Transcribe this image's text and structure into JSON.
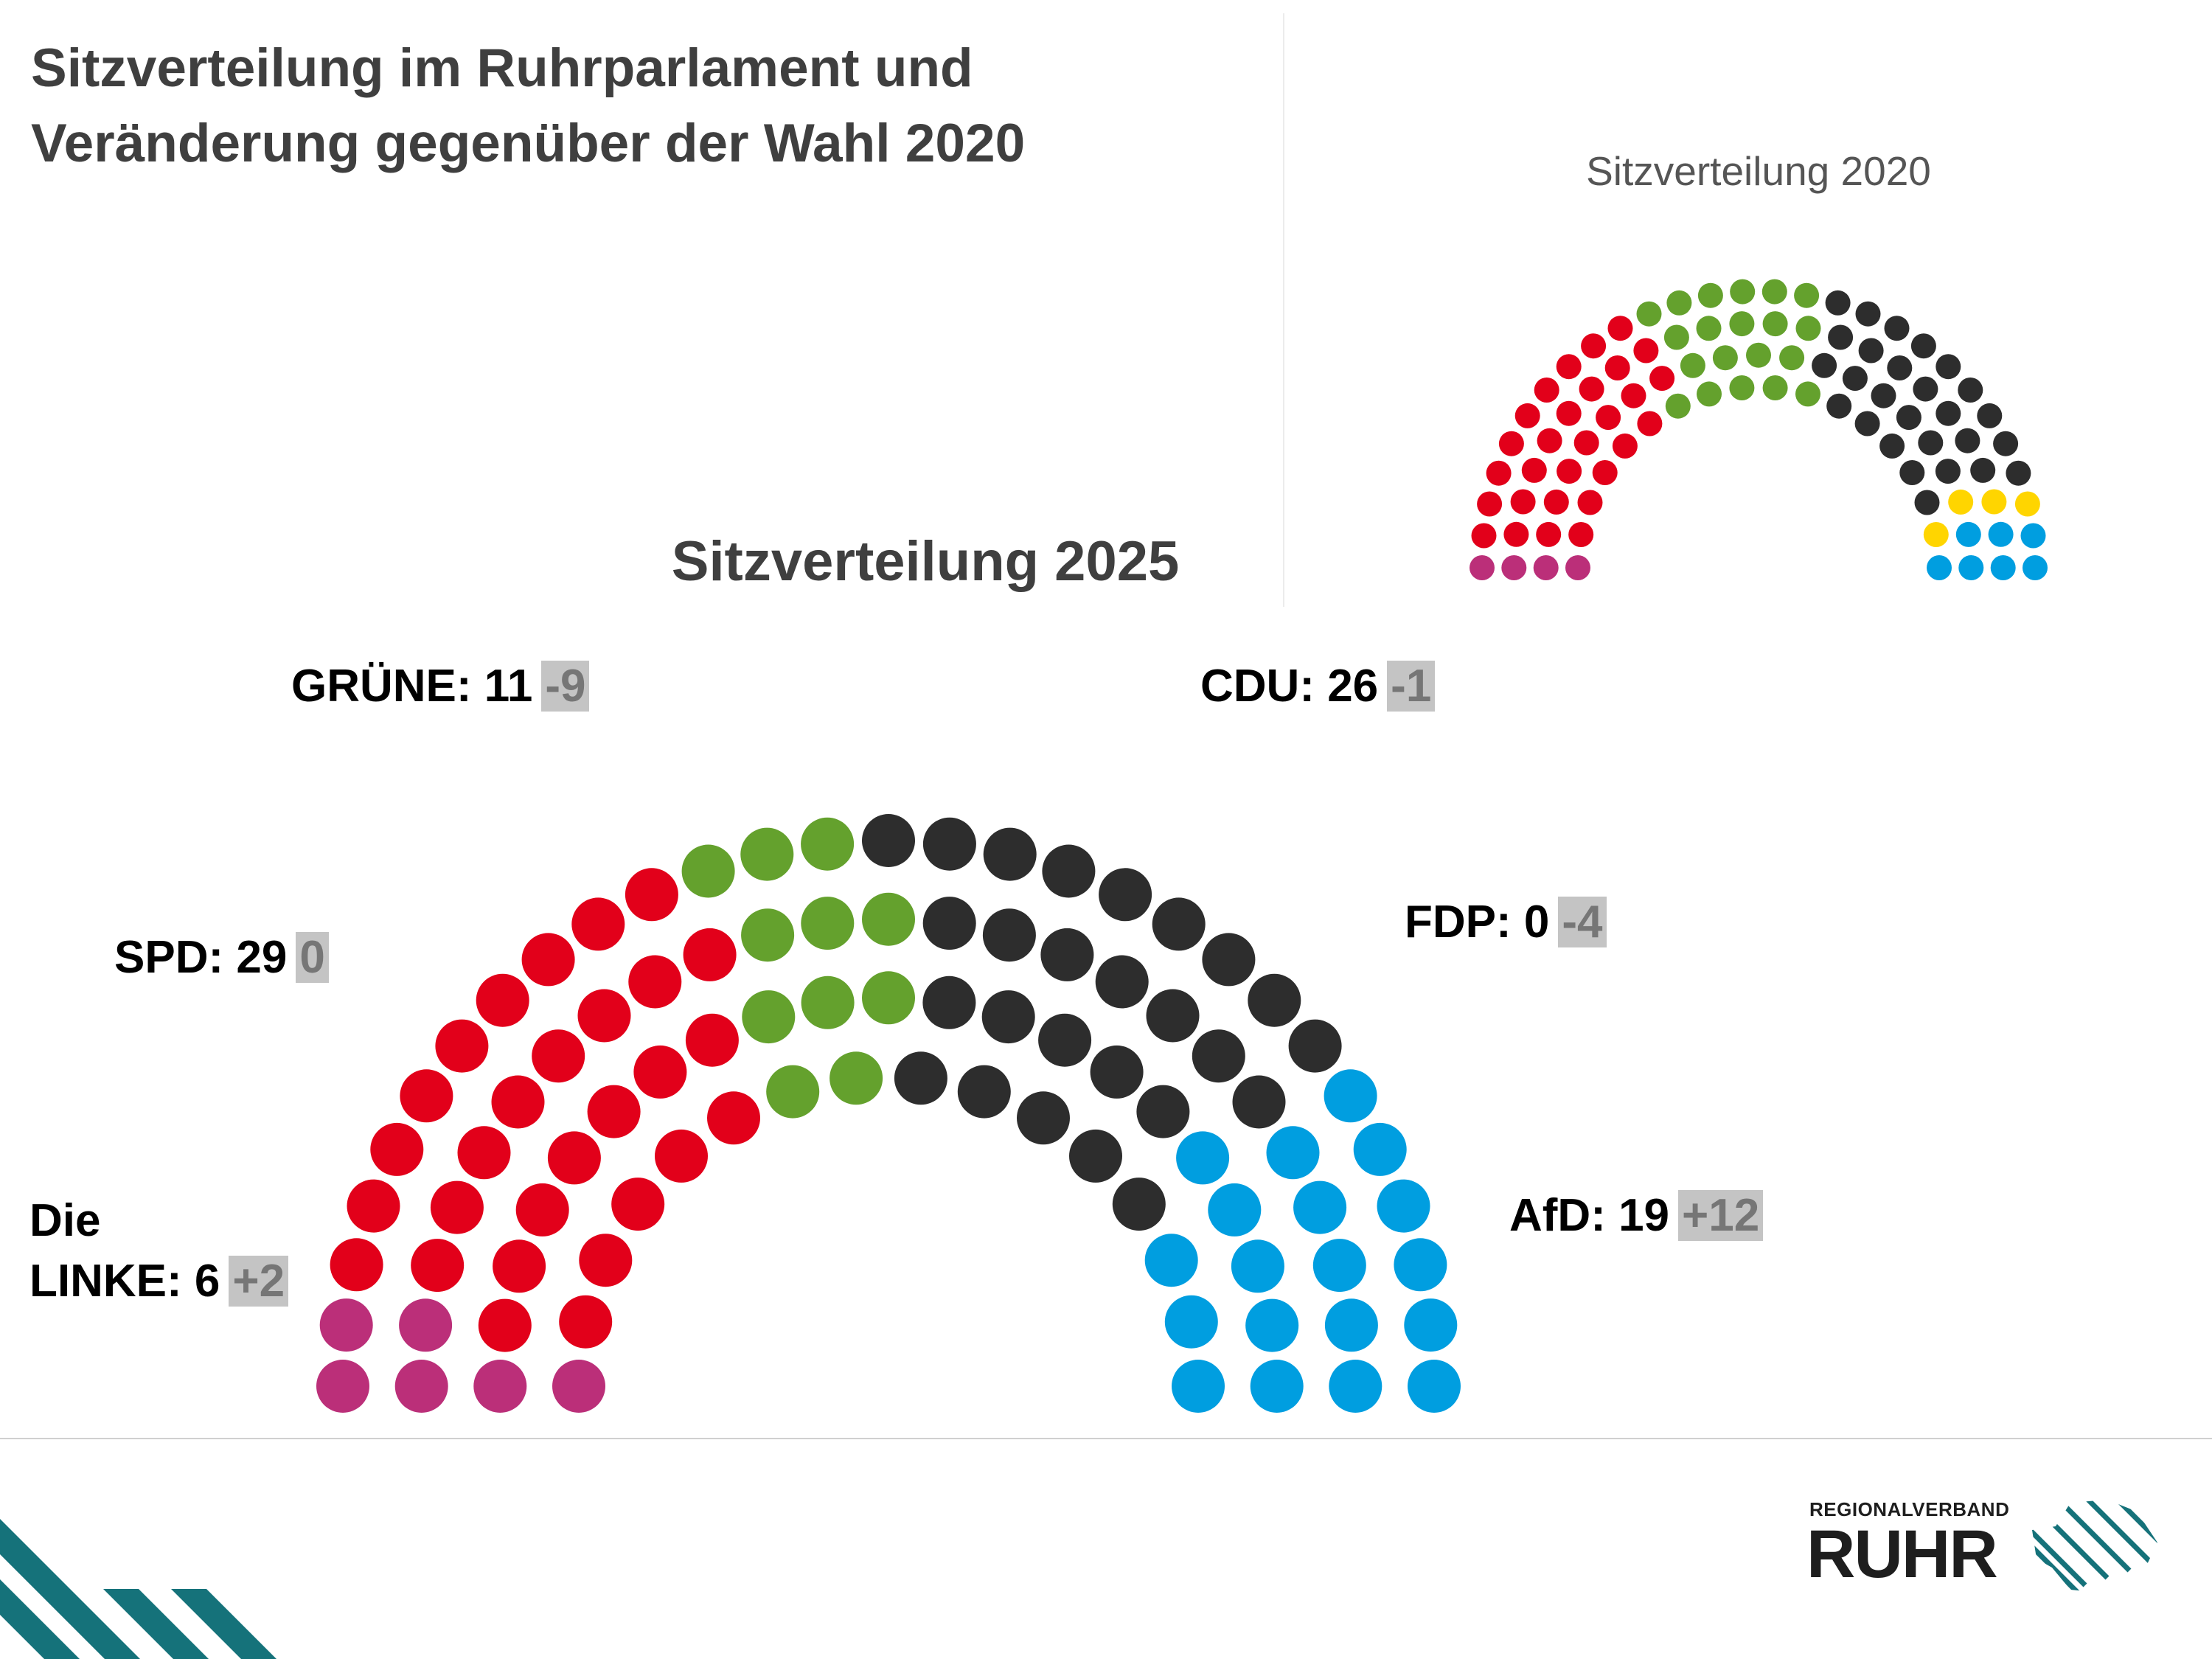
{
  "title_line1": "Sitzverteilung im Ruhrparlament und",
  "title_line2": "Veränderung gegenüber der Wahl 2020",
  "chart_data": [
    {
      "type": "parliament",
      "title": "Sitzverteilung 2025",
      "order": [
        "Die LINKE",
        "SPD",
        "GRÜNE",
        "CDU",
        "FDP",
        "AfD"
      ],
      "series": [
        {
          "name": "Die LINKE",
          "label_line1": "Die",
          "label_line2": "LINKE: 6",
          "seats": 6,
          "change": "+2",
          "color": "#bb2f79"
        },
        {
          "name": "SPD",
          "label": "SPD: 29",
          "seats": 29,
          "change": "0",
          "color": "#e2001a"
        },
        {
          "name": "GRÜNE",
          "label": "GRÜNE: 11",
          "seats": 11,
          "change": "-9",
          "color": "#64a12d"
        },
        {
          "name": "CDU",
          "label": "CDU: 26",
          "seats": 26,
          "change": "-1",
          "color": "#2d2d2d"
        },
        {
          "name": "FDP",
          "label": "FDP: 0",
          "seats": 0,
          "change": "-4",
          "color": "#ffd500"
        },
        {
          "name": "AfD",
          "label": "AfD: 19",
          "seats": 19,
          "change": "+12",
          "color": "#009ee0"
        }
      ],
      "total_seats": 91
    },
    {
      "type": "parliament",
      "title": "Sitzverteilung 2020",
      "order": [
        "Die LINKE",
        "SPD",
        "GRÜNE",
        "CDU",
        "FDP",
        "AfD"
      ],
      "series": [
        {
          "name": "Die LINKE",
          "seats": 4,
          "color": "#bb2f79"
        },
        {
          "name": "SPD",
          "seats": 29,
          "color": "#e2001a"
        },
        {
          "name": "GRÜNE",
          "seats": 20,
          "color": "#64a12d"
        },
        {
          "name": "CDU",
          "seats": 27,
          "color": "#2d2d2d"
        },
        {
          "name": "FDP",
          "seats": 4,
          "color": "#ffd500"
        },
        {
          "name": "AfD",
          "seats": 7,
          "color": "#009ee0"
        }
      ],
      "total_seats": 91
    }
  ],
  "logo": {
    "line1": "REGIONALVERBAND",
    "line2": "RUHR",
    "color": "#15727a"
  },
  "colors": {
    "accent_teal": "#15727a",
    "delta_bg": "#c4c4c4",
    "delta_text": "#767676"
  }
}
